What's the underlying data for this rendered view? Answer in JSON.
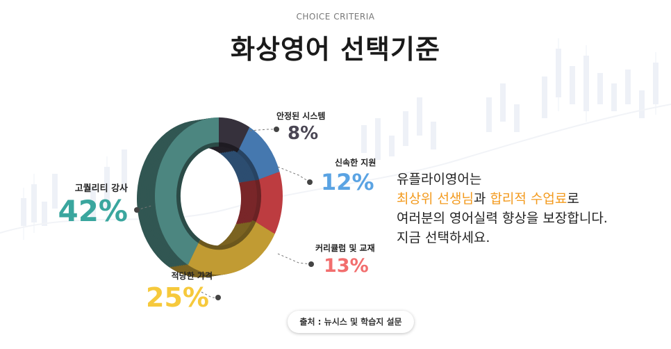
{
  "header": {
    "eyebrow": "CHOICE CRITERIA",
    "title": "화상영어 선택기준"
  },
  "chart_data": {
    "type": "pie",
    "categories": [
      "고퀄리티 강사",
      "안정된 시스템",
      "신속한 지원",
      "커리큘럼 및 교재",
      "적당한 가격"
    ],
    "values": [
      42,
      8,
      12,
      13,
      25
    ],
    "value_labels": [
      "42%",
      "8%",
      "12%",
      "13%",
      "25%"
    ],
    "colors": [
      "#3d6b66",
      "#2b2730",
      "#37608c",
      "#973033",
      "#9a7c29"
    ],
    "label_colors": [
      "#3aa69e",
      "#4a4654",
      "#5aa3e3",
      "#f26e6e",
      "#f6c93c"
    ],
    "donut": true
  },
  "message": {
    "line1": "유플라이영어는",
    "highlight1": "최상위 선생님",
    "mid": "과 ",
    "highlight2": "합리적 수업료",
    "end": "로",
    "line3": "여러분의 영어실력 향상을 보장합니다.",
    "line4": "지금 선택하세요."
  },
  "source": "출처 : 뉴시스 및 학습지 설문"
}
